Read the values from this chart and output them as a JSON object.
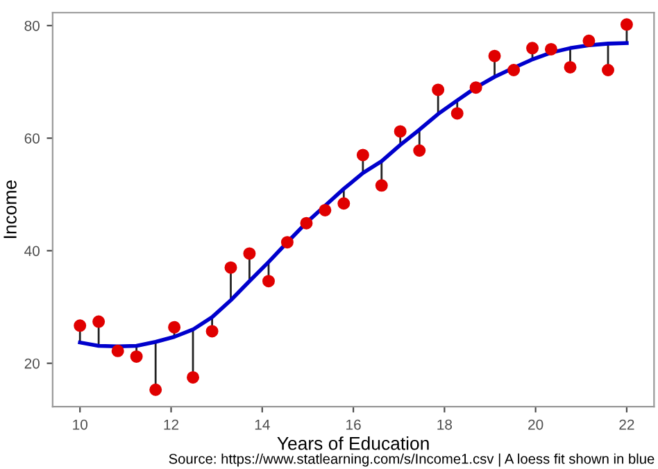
{
  "chart_data": {
    "type": "scatter",
    "xlabel": "Years of Education",
    "ylabel": "Income",
    "annotations": [
      "Source: https://www.statlearning.com/s/Income1.csv | A loess fit shown in blue"
    ],
    "xlim": [
      9.4,
      22.6
    ],
    "ylim": [
      12.3,
      82.3
    ],
    "xticks": [
      10,
      12,
      14,
      16,
      18,
      20,
      22
    ],
    "yticks": [
      20,
      40,
      60,
      80
    ],
    "grid": false,
    "series": [
      {
        "color": "#e00000",
        "marker": "circle",
        "errors": [
          [
            23.7,
            26.7
          ],
          [
            23.1,
            27.4
          ],
          null,
          [
            21.2,
            23.1
          ],
          [
            15.3,
            23.8
          ],
          [
            24.7,
            26.4
          ],
          [
            17.5,
            26.0
          ],
          [
            25.7,
            28.2
          ],
          [
            31.2,
            37.0
          ],
          [
            34.6,
            39.5
          ],
          [
            34.6,
            38.0
          ],
          null,
          null,
          null,
          [
            48.4,
            51.0
          ],
          [
            53.8,
            57.0
          ],
          [
            51.6,
            55.9
          ],
          [
            58.8,
            61.2
          ],
          [
            57.8,
            61.5
          ],
          [
            64.3,
            68.6
          ],
          [
            64.4,
            66.7
          ],
          null,
          [
            70.9,
            74.6
          ],
          null,
          [
            74.0,
            76.0
          ],
          null,
          [
            72.6,
            76.0
          ],
          null,
          [
            72.1,
            76.8
          ],
          [
            76.9,
            80.2
          ]
        ],
        "x": [
          10,
          10.41,
          10.83,
          11.24,
          11.66,
          12.07,
          12.48,
          12.9,
          13.31,
          13.72,
          14.14,
          14.55,
          14.97,
          15.38,
          15.79,
          16.21,
          16.62,
          17.03,
          17.45,
          17.86,
          18.28,
          18.69,
          19.1,
          19.52,
          19.93,
          20.34,
          20.76,
          21.17,
          21.59,
          22
        ],
        "values": [
          26.7,
          27.4,
          22.2,
          21.2,
          15.3,
          26.4,
          17.5,
          25.7,
          37.0,
          39.5,
          34.6,
          41.5,
          44.9,
          47.2,
          48.4,
          57.0,
          51.6,
          61.2,
          57.8,
          68.6,
          64.4,
          69.0,
          74.6,
          72.1,
          76.0,
          75.8,
          72.6,
          77.3,
          72.1,
          80.2
        ]
      },
      {
        "type": "line",
        "color": "#0000cc",
        "marker": "none",
        "line_style": "solid",
        "x": [
          10,
          10.41,
          10.83,
          11.24,
          11.66,
          12.07,
          12.48,
          12.9,
          13.31,
          13.72,
          14.14,
          14.55,
          14.97,
          15.38,
          15.79,
          16.21,
          16.62,
          17.03,
          17.45,
          17.86,
          18.28,
          18.69,
          19.1,
          19.52,
          19.93,
          20.34,
          20.76,
          21.17,
          21.59,
          22
        ],
        "values": [
          23.7,
          23.1,
          23.0,
          23.1,
          23.8,
          24.7,
          26.0,
          28.2,
          31.2,
          34.6,
          38.0,
          41.5,
          45.0,
          48.0,
          51.0,
          53.8,
          55.9,
          58.8,
          61.5,
          64.3,
          66.7,
          69.0,
          70.9,
          72.5,
          74.0,
          75.2,
          76.0,
          76.5,
          76.8,
          76.9
        ]
      }
    ]
  }
}
